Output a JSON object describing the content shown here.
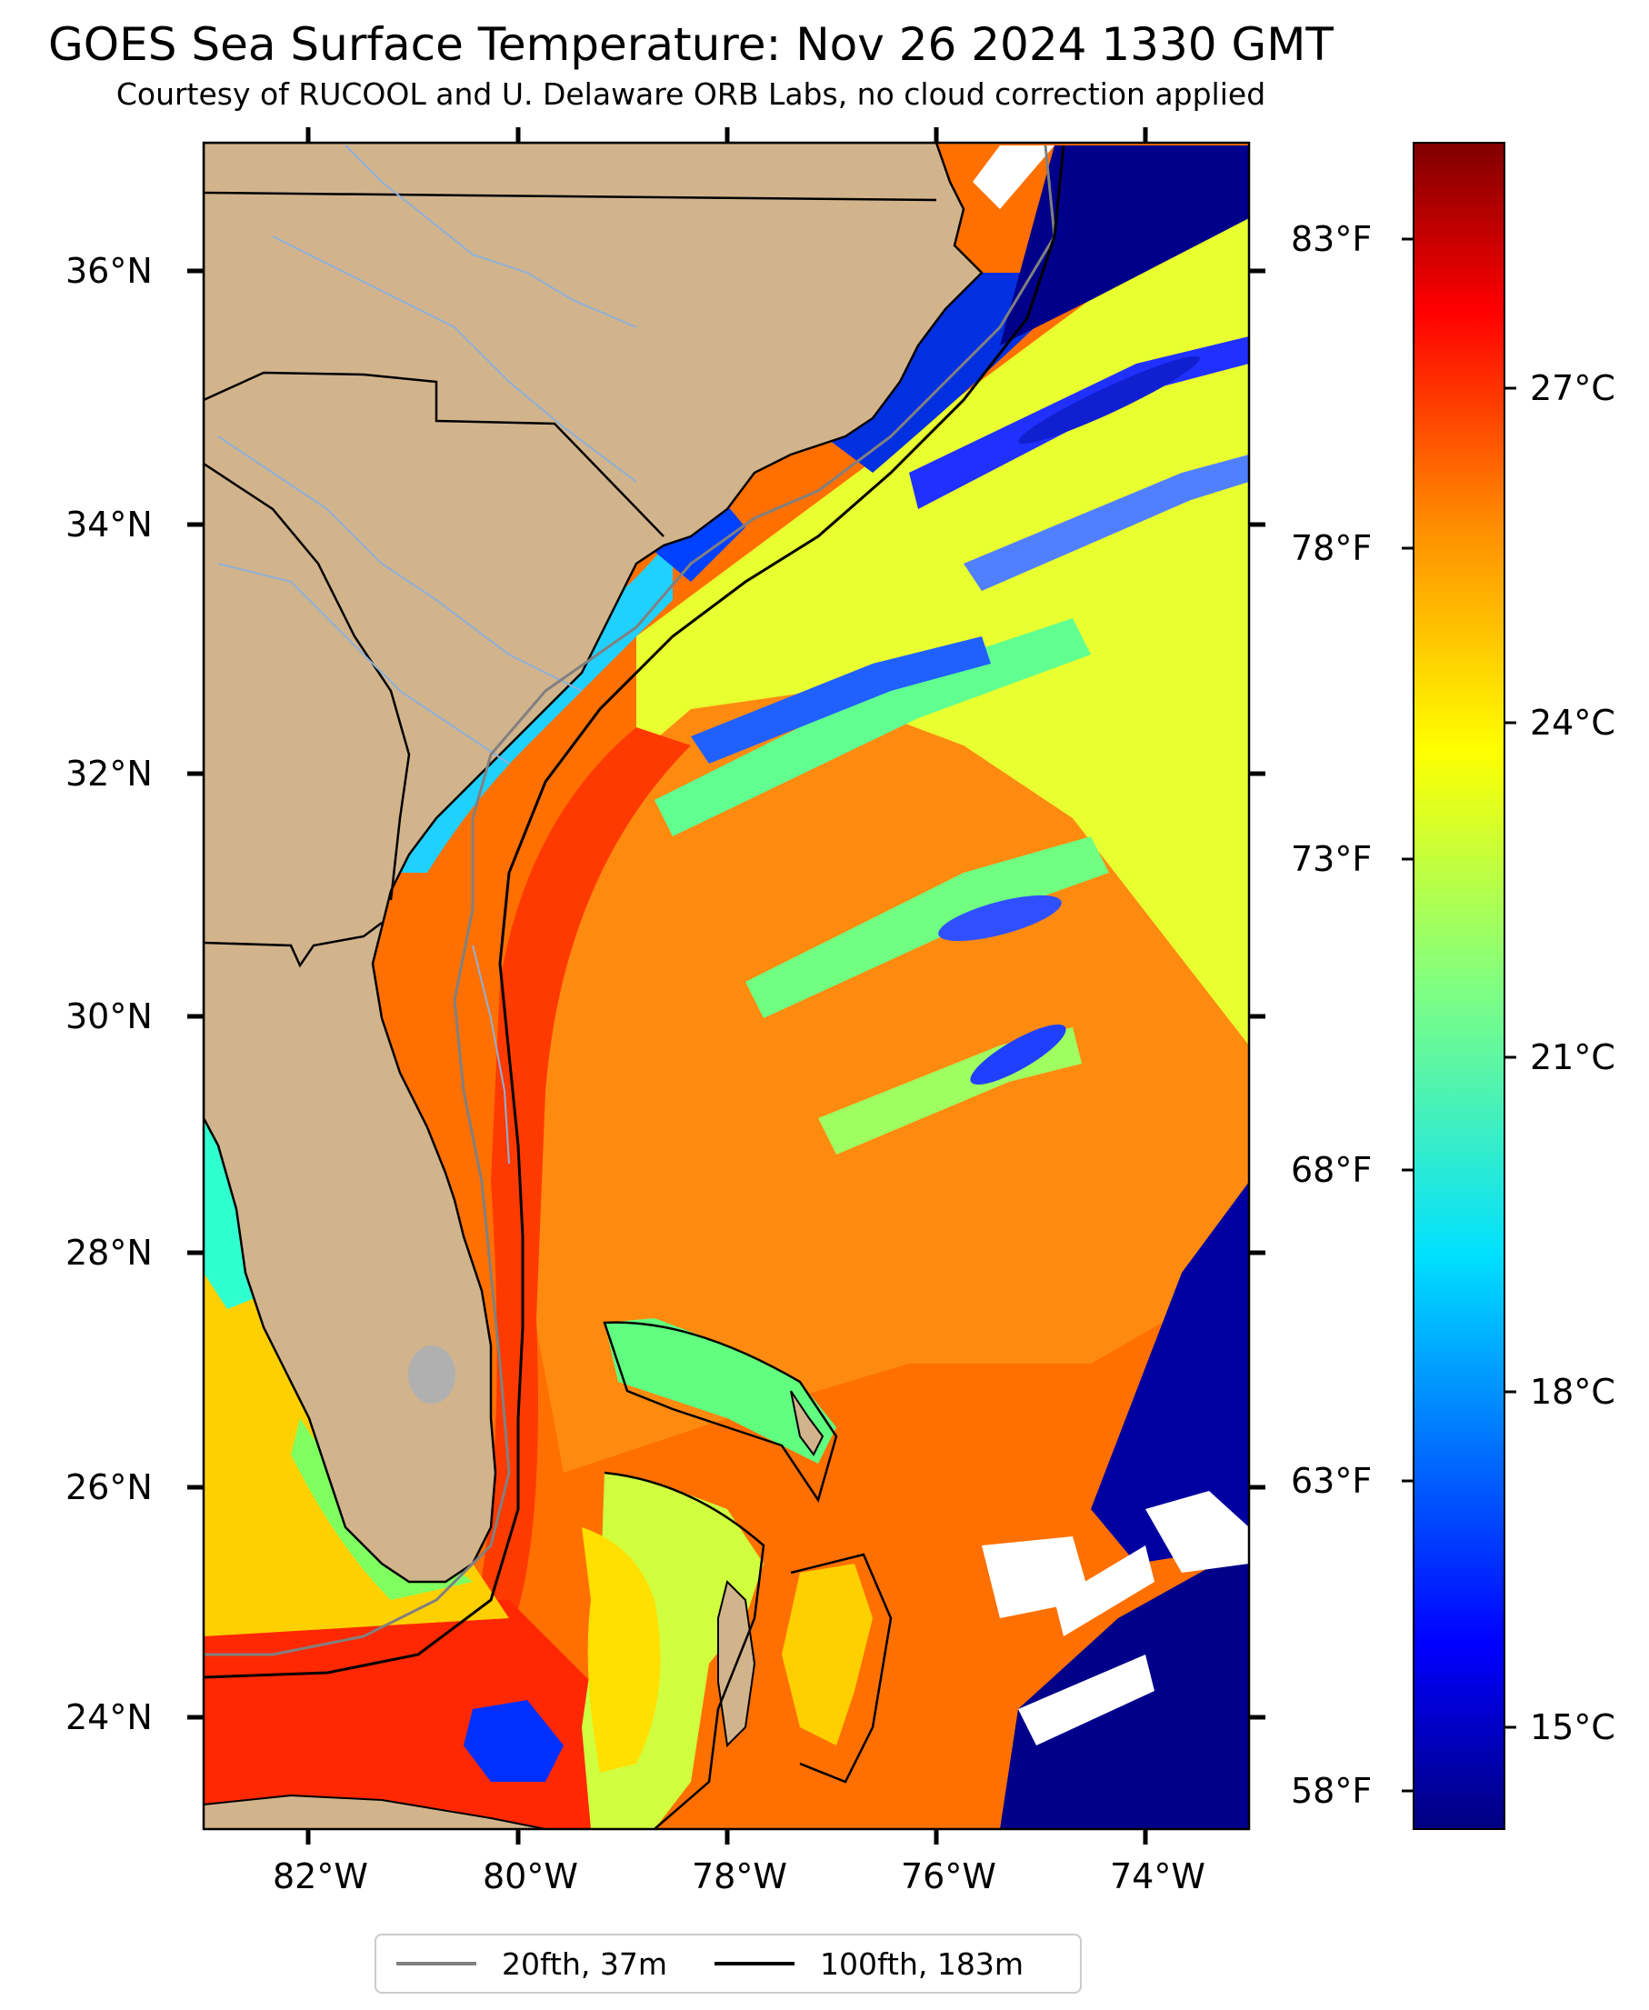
{
  "title": "GOES Sea Surface Temperature: Nov 26 2024 1330 GMT",
  "subtitle": "Courtesy of RUCOOL and U. Delaware ORB Labs, no cloud correction applied",
  "axes": {
    "longitude_ticks": [
      "82°W",
      "80°W",
      "78°W",
      "76°W",
      "74°W"
    ],
    "latitude_ticks": [
      "36°N",
      "34°N",
      "32°N",
      "30°N",
      "28°N",
      "26°N",
      "24°N"
    ]
  },
  "colorbar": {
    "celsius_ticks": [
      "27°C",
      "24°C",
      "21°C",
      "18°C",
      "15°C"
    ],
    "fahrenheit_ticks": [
      "83°F",
      "78°F",
      "73°F",
      "68°F",
      "63°F",
      "58°F"
    ],
    "colormap": "jet",
    "colors": [
      "#00007f",
      "#0000ff",
      "#0080ff",
      "#00ffff",
      "#80ff80",
      "#ffff00",
      "#ff8000",
      "#ff0000",
      "#7f0000"
    ]
  },
  "legend": [
    {
      "label": "20fth, 37m",
      "color": "#808080"
    },
    {
      "label": "100fth, 183m",
      "color": "#000000"
    }
  ],
  "colors": {
    "land": "#d2b48c",
    "rivers": "#8fb0d8",
    "no_data": "#ffffff"
  }
}
